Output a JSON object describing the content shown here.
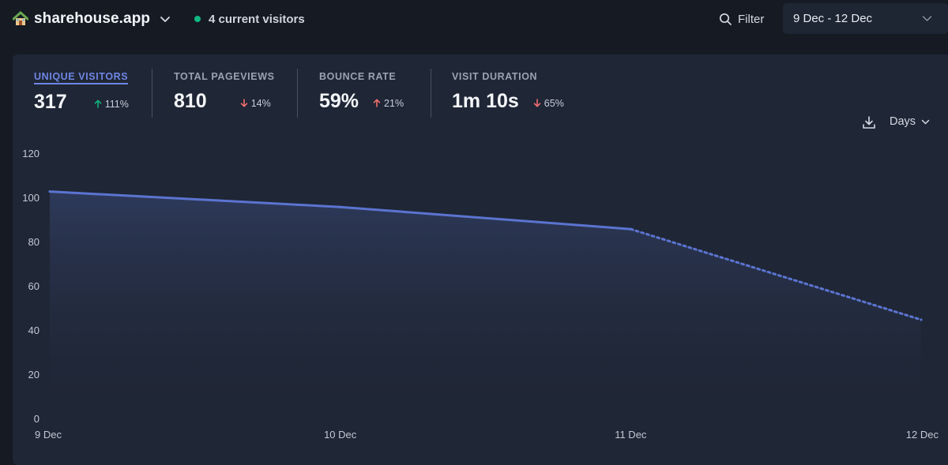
{
  "header": {
    "site_name": "sharehouse.app",
    "current_visitors": "4 current visitors",
    "filter_label": "Filter",
    "date_range": "9 Dec - 12 Dec"
  },
  "metrics": [
    {
      "label": "UNIQUE VISITORS",
      "value": "317",
      "change": "111%",
      "direction": "up",
      "active": true
    },
    {
      "label": "TOTAL PAGEVIEWS",
      "value": "810",
      "change": "14%",
      "direction": "down",
      "active": false
    },
    {
      "label": "BOUNCE RATE",
      "value": "59%",
      "change": "21%",
      "direction": "up",
      "active": false
    },
    {
      "label": "VISIT DURATION",
      "value": "1m 10s",
      "change": "65%",
      "direction": "down",
      "active": false
    }
  ],
  "controls": {
    "interval_label": "Days",
    "download_icon": "download-icon"
  },
  "colors": {
    "accent": "#6f86e3",
    "line": "#5b74d1",
    "live": "#10b981",
    "up": "#10b981",
    "down": "#f87171"
  },
  "chart_data": {
    "type": "area",
    "categories": [
      "9 Dec",
      "10 Dec",
      "11 Dec",
      "12 Dec"
    ],
    "series": [
      {
        "values": [
          103,
          96,
          86,
          45
        ],
        "incomplete_last_segment": true
      }
    ],
    "y_ticks": [
      0,
      20,
      40,
      60,
      80,
      100,
      120
    ],
    "ylim": [
      0,
      120
    ],
    "grid": false
  }
}
